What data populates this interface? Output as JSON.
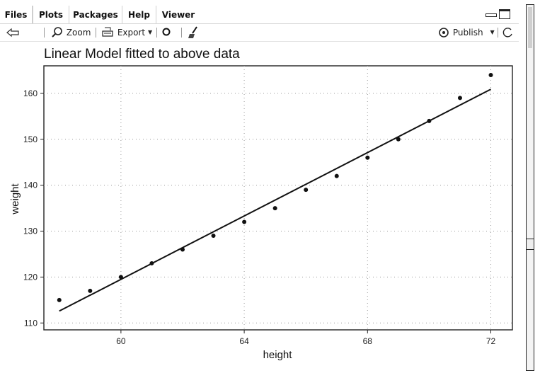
{
  "tabs": [
    {
      "label": "Files",
      "active": false
    },
    {
      "label": "Plots",
      "active": true
    },
    {
      "label": "Packages",
      "active": false
    },
    {
      "label": "Help",
      "active": false
    },
    {
      "label": "Viewer",
      "active": false
    }
  ],
  "toolbar": {
    "zoom_label": "Zoom",
    "export_label": "Export",
    "publish_label": "Publish"
  },
  "chart_data": {
    "type": "scatter",
    "title": "Linear Model fitted to above data",
    "xlabel": "height",
    "ylabel": "weight",
    "xlim": [
      57.5,
      72.7
    ],
    "ylim": [
      108.5,
      166
    ],
    "x_ticks": [
      60,
      64,
      68,
      72
    ],
    "x_tick_labels": [
      "60",
      "64",
      "68",
      "72"
    ],
    "y_ticks": [
      110,
      120,
      130,
      140,
      150,
      160
    ],
    "grid": true,
    "series": [
      {
        "x": [
          58,
          59,
          60,
          61,
          62,
          63,
          64,
          65,
          66,
          67,
          68,
          69,
          70,
          71,
          72
        ],
        "y": [
          115,
          117,
          120,
          123,
          126,
          129,
          132,
          135,
          139,
          142,
          146,
          150,
          154,
          159,
          164
        ]
      }
    ],
    "fit_line": {
      "x": [
        58,
        72
      ],
      "y": [
        112.6,
        160.9
      ]
    }
  }
}
